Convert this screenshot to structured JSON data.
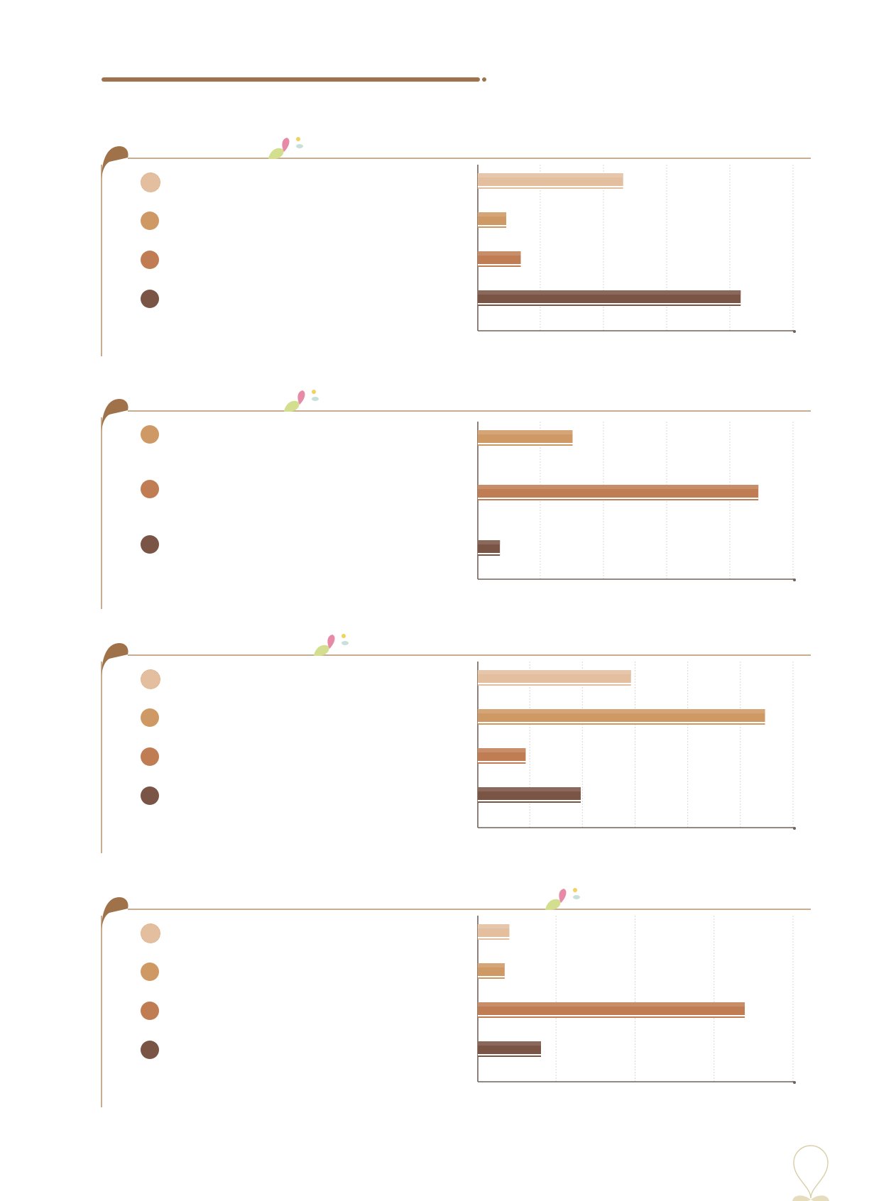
{
  "colors": {
    "brand_brown": "#a0724a",
    "rule_tan": "#c9ad92",
    "axis": "#6f625a",
    "grid": "#ddd8d2",
    "series": [
      "#e3bfa0",
      "#cf9966",
      "#c07d54",
      "#7a5546"
    ],
    "sprig_green": "#d3df8e",
    "sprig_pink": "#e78aa8",
    "sprig_yellow": "#f2d25a",
    "sprig_blue": "#c8e0dc"
  },
  "icons": [
    "title-rule",
    "leaf-drop-icon",
    "sprig-icon",
    "bulb-icon"
  ],
  "chart_data": [
    {
      "type": "bar",
      "orientation": "horizontal",
      "categories": [
        "",
        "",
        "",
        ""
      ],
      "values": [
        2.3,
        0.45,
        0.68,
        4.16
      ],
      "xlim": [
        0,
        5
      ],
      "legend": "left",
      "grid": true,
      "color_index": [
        0,
        1,
        2,
        3
      ]
    },
    {
      "type": "bar",
      "orientation": "horizontal",
      "categories": [
        "",
        "",
        ""
      ],
      "values": [
        1.5,
        4.44,
        0.35
      ],
      "xlim": [
        0,
        5
      ],
      "legend": "left",
      "grid": true,
      "color_index": [
        1,
        2,
        3
      ]
    },
    {
      "type": "bar",
      "orientation": "horizontal",
      "categories": [
        "",
        "",
        "",
        ""
      ],
      "values": [
        3.2,
        6.0,
        1.0,
        2.15
      ],
      "xlim": [
        0,
        6.6
      ],
      "legend": "left",
      "grid": true,
      "color_index": [
        0,
        1,
        2,
        3
      ]
    },
    {
      "type": "bar",
      "orientation": "horizontal",
      "categories": [
        "",
        "",
        "",
        ""
      ],
      "values": [
        0.4,
        0.34,
        3.38,
        0.8
      ],
      "xlim": [
        0,
        4
      ],
      "legend": "left",
      "grid": true,
      "color_index": [
        0,
        1,
        2,
        3
      ]
    }
  ]
}
